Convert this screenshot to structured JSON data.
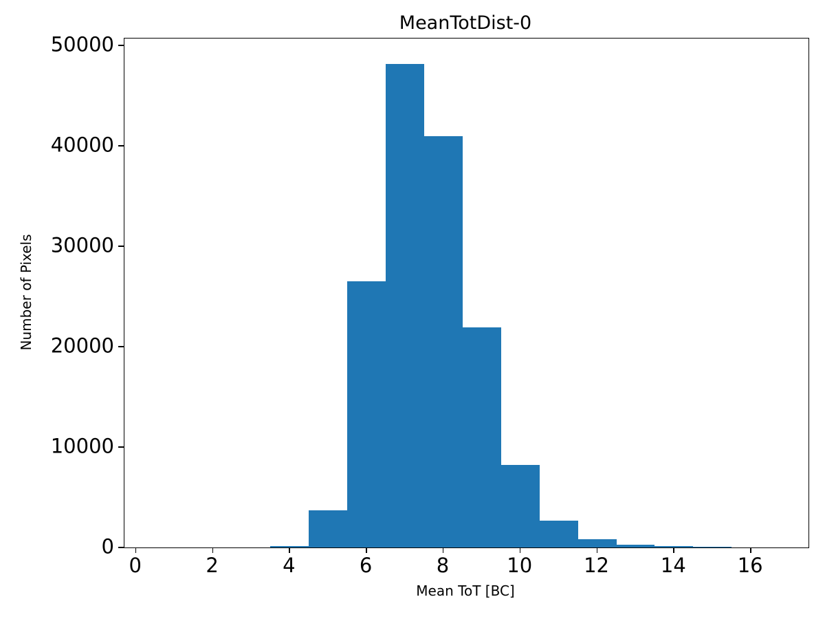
{
  "figure": {
    "background": "#ffffff",
    "text_color": "#000000"
  },
  "chart_data": {
    "type": "bar",
    "subtype": "histogram",
    "title": "MeanTotDist-0",
    "xlabel": "Mean ToT [BC]",
    "ylabel": "Number of Pixels",
    "bar_color": "#1f77b4",
    "grid": false,
    "legend": false,
    "xlim": [
      -0.3,
      17.5
    ],
    "ylim": [
      0,
      50700
    ],
    "xticks": [
      0,
      2,
      4,
      6,
      8,
      10,
      12,
      14,
      16
    ],
    "yticks": [
      0,
      10000,
      20000,
      30000,
      40000,
      50000
    ],
    "bin_edges": [
      3.5,
      4.5,
      5.5,
      6.5,
      7.5,
      8.5,
      9.5,
      10.5,
      11.5,
      12.5,
      13.5,
      14.5,
      15.5
    ],
    "counts": [
      150,
      3700,
      26500,
      48200,
      41000,
      21900,
      8200,
      2700,
      800,
      300,
      120,
      60
    ]
  }
}
